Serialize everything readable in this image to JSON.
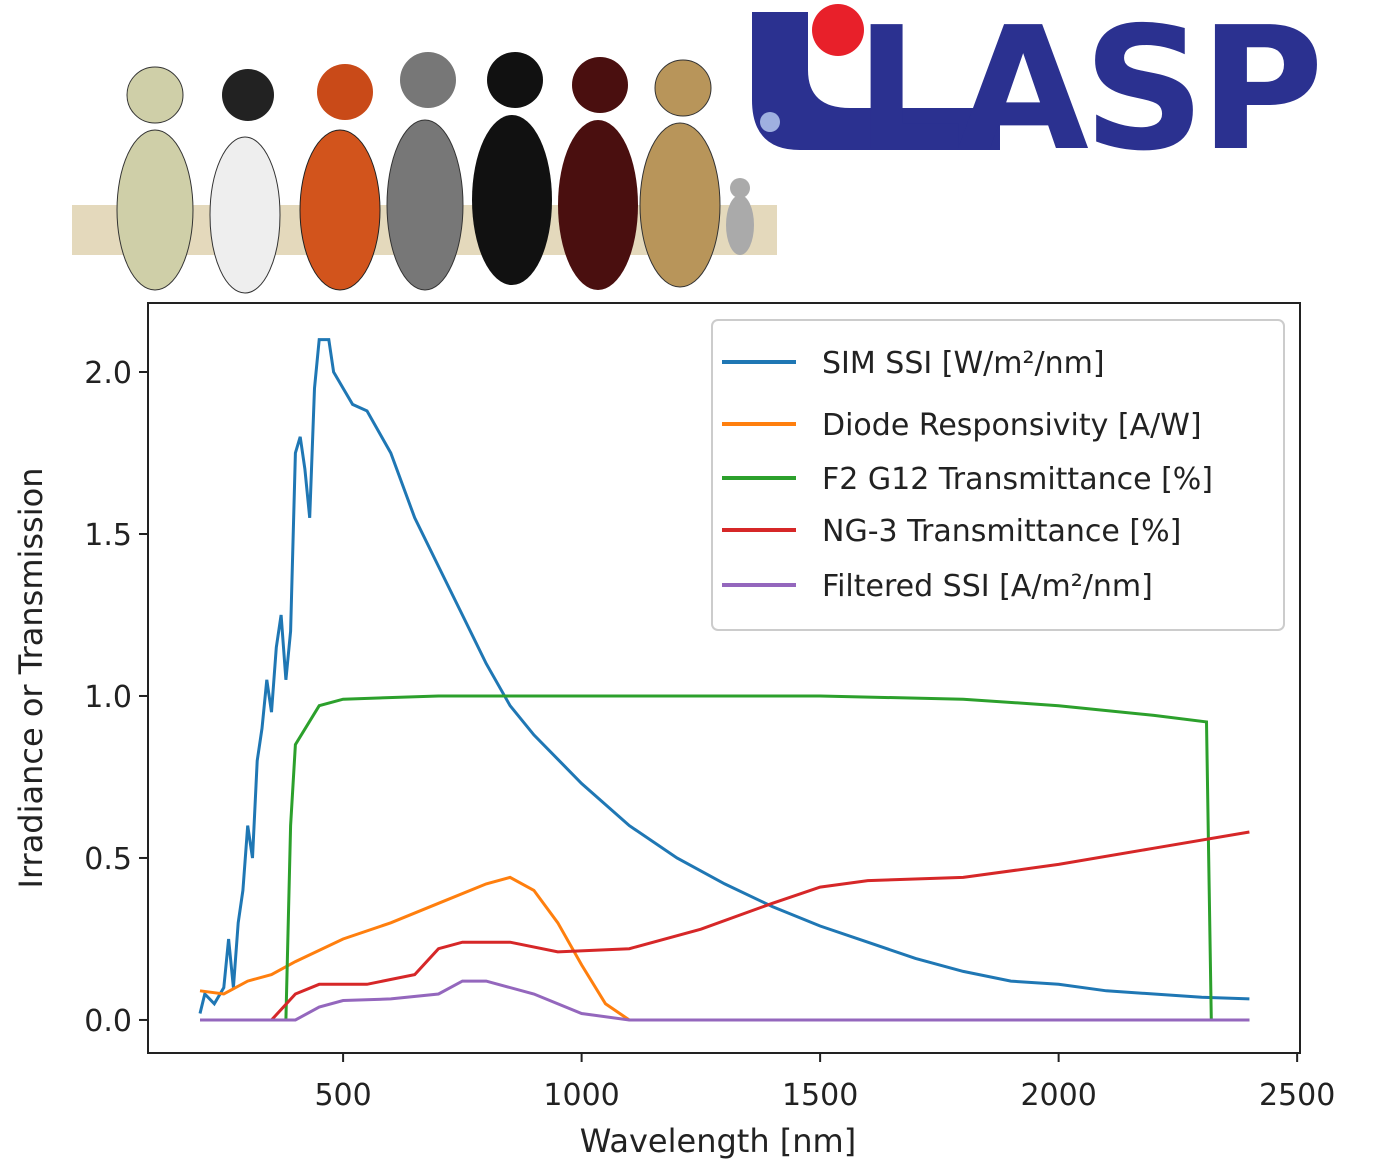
{
  "logo": {
    "text": "LASP"
  },
  "chart_data": {
    "type": "line",
    "xlabel": "Wavelength [nm]",
    "ylabel": "Irradiance or Transmission",
    "xlim": [
      91,
      2506
    ],
    "ylim": [
      -0.102,
      2.213
    ],
    "xticks": [
      500,
      1000,
      1500,
      2000,
      2500
    ],
    "yticks": [
      {
        "value": 0,
        "label": "0.0"
      },
      0.5,
      {
        "value": 1,
        "label": "1.0"
      },
      1.5,
      {
        "value": 2,
        "label": "2.0"
      }
    ],
    "legend": "upper right",
    "series": [
      {
        "name": "SIM SSI [W/m²/nm]",
        "color": "#1f77b4",
        "x": [
          200,
          210,
          230,
          250,
          260,
          270,
          280,
          290,
          300,
          310,
          320,
          330,
          340,
          350,
          360,
          370,
          380,
          390,
          400,
          410,
          420,
          430,
          440,
          450,
          470,
          480,
          500,
          520,
          550,
          600,
          650,
          700,
          750,
          800,
          850,
          900,
          1000,
          1100,
          1200,
          1300,
          1400,
          1500,
          1600,
          1700,
          1800,
          1900,
          2000,
          2100,
          2200,
          2300,
          2400
        ],
        "values": [
          0.02,
          0.08,
          0.05,
          0.1,
          0.25,
          0.1,
          0.3,
          0.4,
          0.6,
          0.5,
          0.8,
          0.9,
          1.05,
          0.95,
          1.15,
          1.25,
          1.05,
          1.2,
          1.75,
          1.8,
          1.7,
          1.55,
          1.95,
          2.1,
          2.1,
          2.0,
          1.95,
          1.9,
          1.88,
          1.75,
          1.55,
          1.4,
          1.25,
          1.1,
          0.97,
          0.88,
          0.73,
          0.6,
          0.5,
          0.42,
          0.35,
          0.29,
          0.24,
          0.19,
          0.15,
          0.12,
          0.11,
          0.09,
          0.08,
          0.07,
          0.065
        ]
      },
      {
        "name": "Diode Responsivity [A/W]",
        "color": "#ff7f0e",
        "x": [
          200,
          250,
          300,
          350,
          400,
          500,
          600,
          700,
          800,
          850,
          900,
          950,
          1000,
          1050,
          1100
        ],
        "values": [
          0.09,
          0.08,
          0.12,
          0.14,
          0.18,
          0.25,
          0.3,
          0.36,
          0.42,
          0.44,
          0.4,
          0.3,
          0.17,
          0.05,
          0.0
        ]
      },
      {
        "name": "F2 G12 Transmittance [%]",
        "color": "#2ca02c",
        "x": [
          200,
          380,
          390,
          400,
          450,
          500,
          700,
          1500,
          1800,
          2000,
          2200,
          2310,
          2320,
          2400
        ],
        "values": [
          0,
          0,
          0.6,
          0.85,
          0.97,
          0.99,
          1.0,
          1.0,
          0.99,
          0.97,
          0.94,
          0.92,
          0.0,
          0.0
        ]
      },
      {
        "name": "NG-3 Transmittance [%]",
        "color": "#d62728",
        "x": [
          200,
          350,
          400,
          450,
          550,
          650,
          700,
          750,
          850,
          950,
          1100,
          1250,
          1400,
          1500,
          1600,
          1800,
          2000,
          2200,
          2400
        ],
        "values": [
          0,
          0,
          0.08,
          0.11,
          0.11,
          0.14,
          0.22,
          0.24,
          0.24,
          0.21,
          0.22,
          0.28,
          0.36,
          0.41,
          0.43,
          0.44,
          0.48,
          0.53,
          0.58
        ]
      },
      {
        "name": "Filtered SSI [A/m²/nm]",
        "color": "#9467bd",
        "x": [
          200,
          400,
          450,
          500,
          600,
          700,
          750,
          800,
          900,
          1000,
          1100,
          2400
        ],
        "values": [
          0,
          0,
          0.04,
          0.06,
          0.065,
          0.08,
          0.12,
          0.12,
          0.08,
          0.02,
          0,
          0
        ]
      }
    ]
  }
}
